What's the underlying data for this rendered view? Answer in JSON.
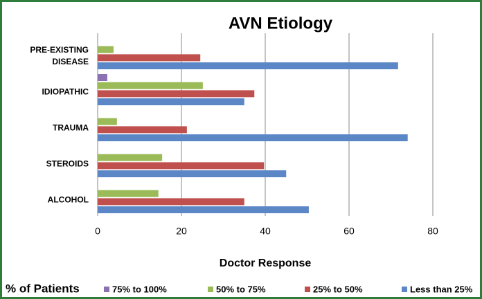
{
  "chart_data": {
    "type": "barh",
    "title": "AVN Etiology",
    "xlabel": "Doctor Response",
    "legend_title": "% of Patients",
    "categories": [
      "PRE-EXISTING DISEASE",
      "IDIOPATHIC",
      "TRAUMA",
      "STEROIDS",
      "ALCOHOL"
    ],
    "series": [
      {
        "name": "75% to 100%",
        "color": "#8d72b3",
        "values": [
          0,
          2.3,
          0,
          0,
          0
        ]
      },
      {
        "name": "50% to 75%",
        "color": "#9bbb59",
        "values": [
          3.8,
          25.1,
          4.6,
          15.4,
          14.5
        ]
      },
      {
        "name": "25% to 50%",
        "color": "#c0504d",
        "values": [
          24.5,
          37.4,
          21.3,
          39.7,
          35
        ]
      },
      {
        "name": "Less than 25%",
        "color": "#5b87c6",
        "values": [
          71.7,
          35,
          74,
          45,
          50.4
        ]
      }
    ],
    "xlim": [
      0,
      80
    ],
    "xticks": [
      0,
      20,
      40,
      60,
      80
    ],
    "grid": true,
    "legend": "bottom"
  }
}
